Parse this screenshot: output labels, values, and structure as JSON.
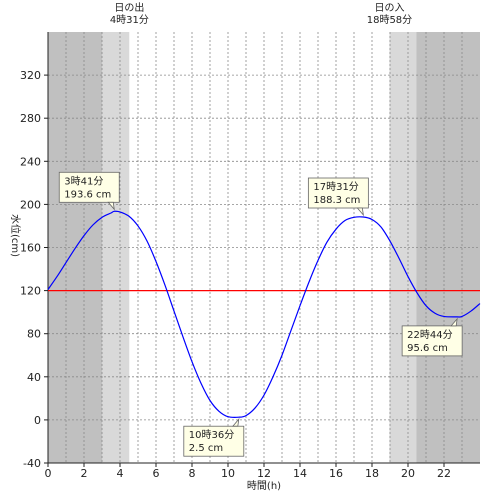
{
  "chart_data": {
    "type": "line",
    "xlabel": "時間(h)",
    "ylabel": "水位(cm)",
    "xlim": [
      0,
      24
    ],
    "ylim": [
      -40,
      360
    ],
    "xticks": [
      0,
      2,
      4,
      6,
      8,
      10,
      12,
      14,
      16,
      18,
      20,
      22
    ],
    "yticks": [
      -40,
      0,
      40,
      80,
      120,
      160,
      200,
      240,
      280,
      320
    ],
    "grid": true,
    "reference_line": {
      "y": 120,
      "color": "#ff0000"
    },
    "series": [
      {
        "color": "#0000ff",
        "x": [
          0,
          0.5,
          1,
          1.5,
          2,
          2.5,
          3,
          3.5,
          3.68,
          4,
          4.5,
          5,
          5.5,
          6,
          6.5,
          7,
          7.5,
          8,
          8.5,
          9,
          9.5,
          10,
          10.6,
          11,
          11.5,
          12,
          12.5,
          13,
          13.5,
          14,
          14.5,
          15,
          15.5,
          16,
          16.5,
          17,
          17.52,
          18,
          18.5,
          19,
          19.5,
          20,
          20.5,
          21,
          21.5,
          22,
          22.73,
          23,
          23.5,
          24
        ],
        "values": [
          121,
          133,
          146,
          159,
          171,
          181,
          188,
          192,
          193.6,
          193,
          189,
          180,
          166,
          147,
          125,
          101,
          77,
          54,
          34,
          18,
          8,
          3,
          2.5,
          4,
          11,
          23,
          40,
          60,
          83,
          106,
          128,
          148,
          165,
          177,
          185,
          188,
          188.3,
          186,
          179,
          166,
          150,
          133,
          118,
          106,
          99,
          96,
          95.6,
          96,
          101,
          108
        ]
      }
    ],
    "daylight": {
      "sunrise": {
        "label": "日の出",
        "time": "4時31分",
        "hour": 4.52
      },
      "sunset": {
        "label": "日の入",
        "time": "18時58分",
        "hour": 18.97
      },
      "twilight_minutes": 90
    },
    "annotations": [
      {
        "time": "3時41分",
        "level": "193.6 cm",
        "x": 3.68,
        "y": 193.6,
        "position": "above"
      },
      {
        "time": "10時36分",
        "level": "2.5 cm",
        "x": 10.6,
        "y": 2.5,
        "position": "below"
      },
      {
        "time": "17時31分",
        "level": "188.3 cm",
        "x": 17.52,
        "y": 188.3,
        "position": "above"
      },
      {
        "time": "22時44分",
        "level": "95.6 cm",
        "x": 22.73,
        "y": 95.6,
        "position": "below"
      }
    ]
  }
}
